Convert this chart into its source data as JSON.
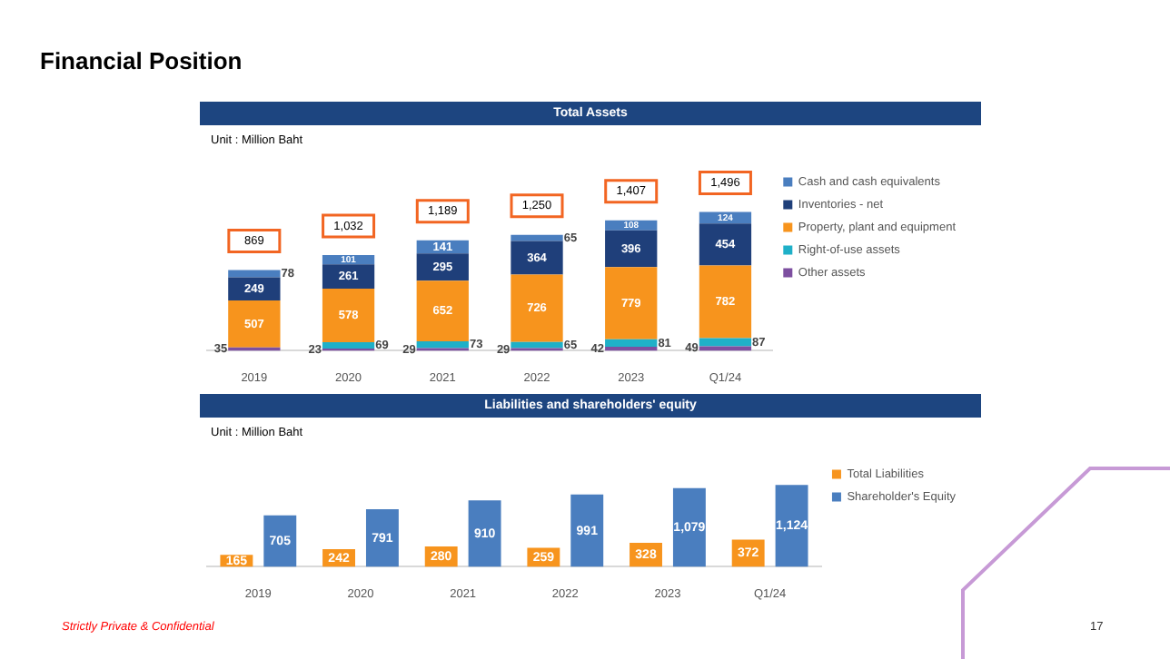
{
  "chart_data": [
    {
      "type": "bar",
      "title": "Total Assets",
      "subtitle": "Unit : Million Baht",
      "annotations": [
        "Financial Position"
      ],
      "stacked": true,
      "categories": [
        "2019",
        "2020",
        "2021",
        "2022",
        "2023",
        "Q1/24"
      ],
      "series": [
        {
          "name": "Other assets",
          "color": "#7d4fa0",
          "values": [
            35,
            23,
            29,
            29,
            42,
            49
          ]
        },
        {
          "name": "Right-of-use assets",
          "color": "#1fb0c8",
          "values": [
            null,
            69,
            73,
            65,
            81,
            87
          ]
        },
        {
          "name": "Property, plant and equipment",
          "color": "#f7941d",
          "values": [
            507,
            578,
            652,
            726,
            779,
            782
          ]
        },
        {
          "name": "Inventories - net",
          "color": "#1f3f7a",
          "values": [
            249,
            261,
            295,
            364,
            396,
            454
          ]
        },
        {
          "name": "Cash and cash equivalents",
          "color": "#4a7ebf",
          "values": [
            78,
            101,
            141,
            65,
            108,
            124
          ]
        }
      ],
      "totals": [
        "869",
        "1,032",
        "1,189",
        "1,250",
        "1,407",
        "1,496"
      ],
      "data_labels": true,
      "legend": "right",
      "grid": false,
      "tick_labels": "x"
    },
    {
      "type": "bar",
      "title": "Liabilities and shareholders' equity",
      "subtitle": "Unit : Million Baht",
      "annotations": [
        "Strictly Private & Confidential",
        "17"
      ],
      "categories": [
        "2019",
        "2020",
        "2021",
        "2022",
        "2023",
        "Q1/24"
      ],
      "series": [
        {
          "name": "Total Liabilities",
          "color": "#f7941d",
          "values": [
            165,
            242,
            280,
            259,
            328,
            372
          ]
        },
        {
          "name": "Shareholder's Equity",
          "color": "#4a7ebf",
          "values": [
            705,
            791,
            910,
            991,
            1079,
            1124
          ],
          "value_labels": [
            "705",
            "791",
            "910",
            "991",
            "1,079",
            "1,124"
          ]
        }
      ],
      "data_labels": true,
      "legend": "right",
      "grid": false,
      "tick_labels": "x"
    }
  ]
}
